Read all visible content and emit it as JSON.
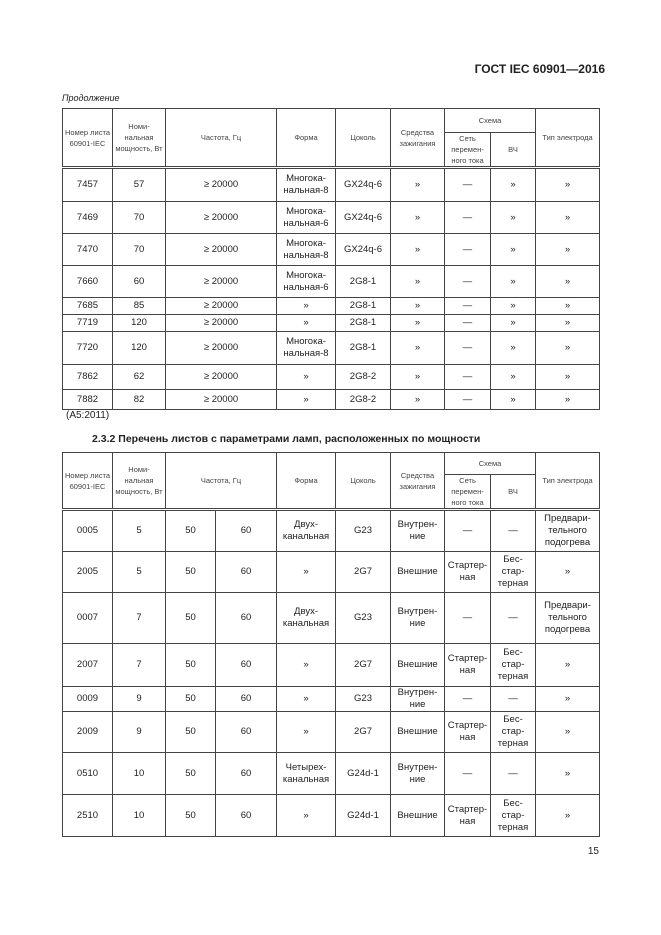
{
  "header": "ГОСТ IEC 60901—2016",
  "continuation": "Продолжение",
  "columns": {
    "number": "Номер листа 60901-IEC",
    "power": "Номи-нальная мощность, Вт",
    "freq": "Частота, Гц",
    "shape": "Форма",
    "base": "Цоколь",
    "ignition": "Средства зажигания",
    "scheme": "Схема",
    "mains": "Сеть перемен-ного тока",
    "hf": "ВЧ",
    "electrode": "Тип электрода"
  },
  "table1": [
    [
      "7457",
      "57",
      "≥ 20000",
      "Многока-нальная-8",
      "GX24q-6",
      "»",
      "—",
      "»",
      "»"
    ],
    [
      "7469",
      "70",
      "≥ 20000",
      "Многока-нальная-6",
      "GX24q-6",
      "»",
      "—",
      "»",
      "»"
    ],
    [
      "7470",
      "70",
      "≥ 20000",
      "Многока-нальная-8",
      "GX24q-6",
      "»",
      "—",
      "»",
      "»"
    ],
    [
      "7660",
      "60",
      "≥ 20000",
      "Многока-нальная-6",
      "2G8-1",
      "»",
      "—",
      "»",
      "»"
    ],
    [
      "7685",
      "85",
      "≥ 20000",
      "»",
      "2G8-1",
      "»",
      "—",
      "»",
      "»"
    ],
    [
      "7719",
      "120",
      "≥ 20000",
      "»",
      "2G8-1",
      "»",
      "—",
      "»",
      "»"
    ],
    [
      "7720",
      "120",
      "≥ 20000",
      "Многока-нальная-8",
      "2G8-1",
      "»",
      "—",
      "»",
      "»"
    ],
    [
      "7862",
      "62",
      "≥ 20000",
      "»",
      "2G8-2",
      "»",
      "—",
      "»",
      "»"
    ],
    [
      "7882",
      "82",
      "≥ 20000",
      "»",
      "2G8-2",
      "»",
      "—",
      "»",
      "»"
    ]
  ],
  "amendment": "(А5:2011)",
  "section_title": "2.3.2 Перечень листов с параметрами ламп, расположенных по мощности",
  "table2": [
    [
      "0005",
      "5",
      "50",
      "60",
      "Двух-канальная",
      "G23",
      "Внутрен-ние",
      "—",
      "—",
      "Предвари-тельного подогрева"
    ],
    [
      "2005",
      "5",
      "50",
      "60",
      "»",
      "2G7",
      "Внешние",
      "Стартер-ная",
      "Бес-стар-терная",
      "»"
    ],
    [
      "0007",
      "7",
      "50",
      "60",
      "Двух-канальная",
      "G23",
      "Внутрен-ние",
      "—",
      "—",
      "Предвари-тельного подогрева"
    ],
    [
      "2007",
      "7",
      "50",
      "60",
      "»",
      "2G7",
      "Внешние",
      "Стартер-ная",
      "Бес-стар-терная",
      "»"
    ],
    [
      "0009",
      "9",
      "50",
      "60",
      "»",
      "G23",
      "Внутрен-ние",
      "—",
      "—",
      "»"
    ],
    [
      "2009",
      "9",
      "50",
      "60",
      "»",
      "2G7",
      "Внешние",
      "Стартер-ная",
      "Бес-стар-терная",
      "»"
    ],
    [
      "0510",
      "10",
      "50",
      "60",
      "Четырех-канальная",
      "G24d-1",
      "Внутрен-ние",
      "—",
      "—",
      "»"
    ],
    [
      "2510",
      "10",
      "50",
      "60",
      "»",
      "G24d-1",
      "Внешние",
      "Стартер-ная",
      "Бес-стар-терная",
      "»"
    ]
  ],
  "page_number": "15"
}
